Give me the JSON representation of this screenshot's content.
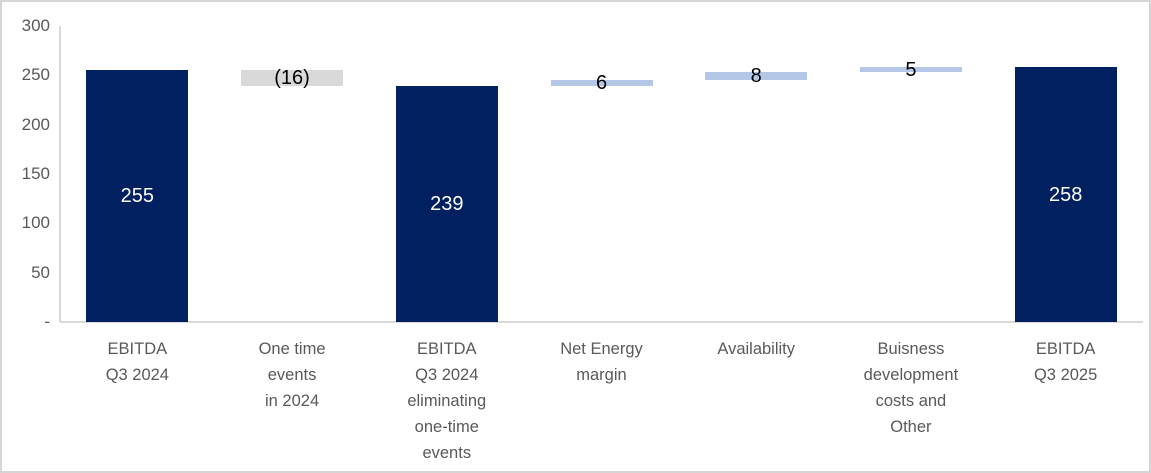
{
  "chart_data": {
    "type": "bar",
    "subtype": "waterfall",
    "title": "",
    "xlabel": "",
    "ylabel": "",
    "grid": false,
    "legend": false,
    "categories": [
      "EBITDA Q3 2024",
      "One time events in 2024",
      "EBITDA Q3 2024 eliminating one-time events",
      "Net Energy margin",
      "Availability",
      "Buisness development costs and Other",
      "EBITDA Q3 2025"
    ],
    "bars": [
      {
        "name": "ebitda-q3-2024",
        "category_lines": [
          "EBITDA",
          "Q3 2024"
        ],
        "label": "255",
        "value": 255,
        "start": 0,
        "end": 255,
        "role": "total"
      },
      {
        "name": "one-time-events-in-2024",
        "category_lines": [
          "One time",
          "events",
          "in 2024"
        ],
        "label": "(16)",
        "value": -16,
        "start": 239,
        "end": 255,
        "role": "decrease"
      },
      {
        "name": "ebitda-q3-2024-eliminating-one-time-events",
        "category_lines": [
          "EBITDA",
          "Q3 2024",
          "eliminating",
          "one-time",
          "events"
        ],
        "label": "239",
        "value": 239,
        "start": 0,
        "end": 239,
        "role": "total"
      },
      {
        "name": "net-energy-margin",
        "category_lines": [
          "Net Energy",
          "margin"
        ],
        "label": "6",
        "value": 6,
        "start": 239,
        "end": 245,
        "role": "increase"
      },
      {
        "name": "availability",
        "category_lines": [
          "Availability"
        ],
        "label": "8",
        "value": 8,
        "start": 245,
        "end": 253,
        "role": "increase"
      },
      {
        "name": "business-development-costs-and-other",
        "category_lines": [
          "Buisness",
          "development",
          "costs and",
          "Other"
        ],
        "label": "5",
        "value": 5,
        "start": 253,
        "end": 258,
        "role": "increase"
      },
      {
        "name": "ebitda-q3-2025",
        "category_lines": [
          "EBITDA",
          "Q3 2025"
        ],
        "label": "258",
        "value": 258,
        "start": 0,
        "end": 258,
        "role": "total"
      }
    ],
    "y_axis": {
      "range": [
        0,
        300
      ],
      "tick_interval": 50,
      "ticks": [
        {
          "value": 300,
          "label": "300"
        },
        {
          "value": 250,
          "label": "250"
        },
        {
          "value": 200,
          "label": "200"
        },
        {
          "value": 150,
          "label": "150"
        },
        {
          "value": 100,
          "label": "100"
        },
        {
          "value": 50,
          "label": "50"
        },
        {
          "value": 0,
          "label": "-"
        }
      ]
    },
    "colors": {
      "total_bar": "#002060",
      "decrease_bar": "#d9d9d9",
      "increase_bar": "#b4c7e7",
      "total_label": "#ffffff",
      "connector_label": "#000000",
      "axis_line": "#d9d9d9",
      "axis_text": "#595959",
      "chart_border": "#d5d5d5"
    }
  }
}
